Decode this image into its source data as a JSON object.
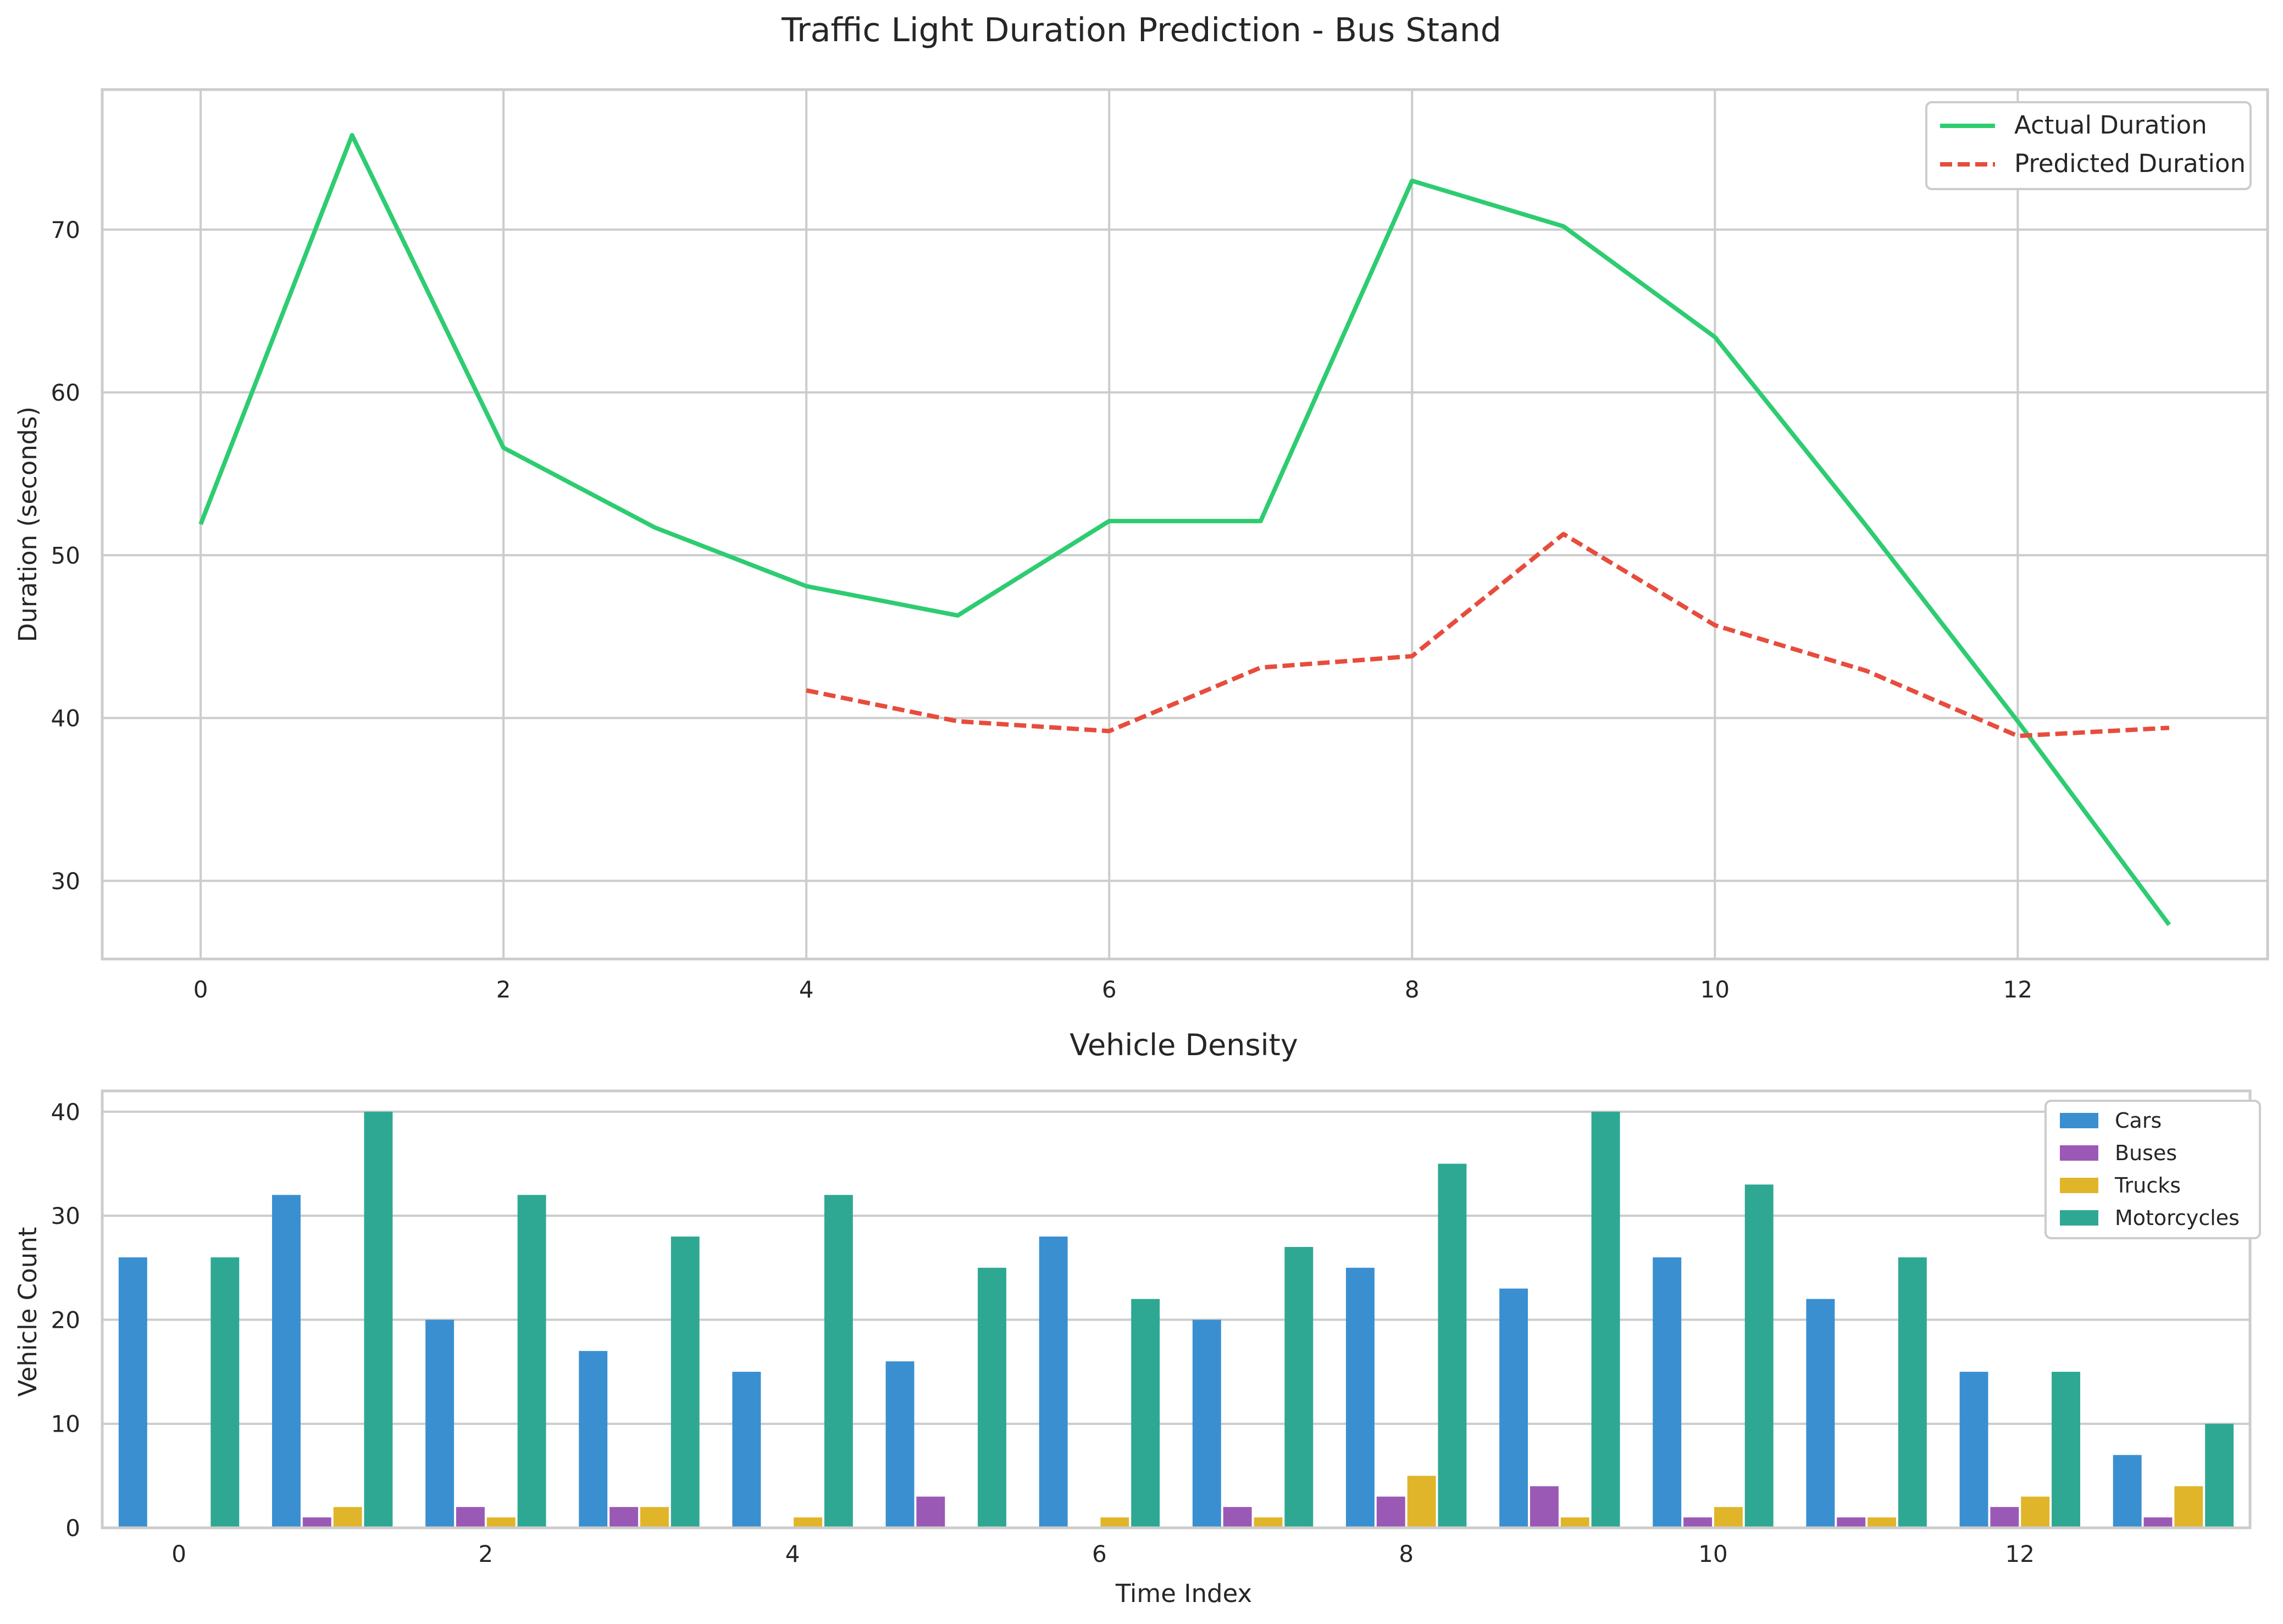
{
  "chart_data": [
    {
      "type": "line",
      "title": "Traffic Light Duration Prediction - Bus Stand",
      "xlabel": "",
      "ylabel": "Duration (seconds)",
      "xlim": [
        -0.65,
        13.65
      ],
      "ylim": [
        25.2,
        78.6
      ],
      "xticks": [
        0,
        2,
        4,
        6,
        8,
        10,
        12
      ],
      "yticks": [
        30,
        40,
        50,
        60,
        70
      ],
      "grid": true,
      "legend": "top-right",
      "series": [
        {
          "name": "Actual Duration",
          "color": "#2ecc71",
          "style": "solid",
          "x": [
            0,
            1,
            2,
            3,
            4,
            5,
            6,
            7,
            8,
            9,
            10,
            11,
            12,
            13
          ],
          "y": [
            51.9,
            75.8,
            56.6,
            51.7,
            48.1,
            46.3,
            52.1,
            52.1,
            73.0,
            70.2,
            63.4,
            51.8,
            39.8,
            27.3
          ]
        },
        {
          "name": "Predicted Duration",
          "color": "#e74c3c",
          "style": "dashed",
          "x": [
            4,
            5,
            6,
            7,
            8,
            9,
            10,
            11,
            12,
            13
          ],
          "y": [
            41.7,
            39.8,
            39.2,
            43.1,
            43.8,
            51.3,
            45.7,
            42.9,
            38.9,
            39.4
          ]
        }
      ]
    },
    {
      "type": "bar",
      "title": "Vehicle Density",
      "xlabel": "Time Index",
      "ylabel": "Vehicle Count",
      "xlim": [
        -0.5,
        13.5
      ],
      "ylim": [
        0,
        42
      ],
      "xticks": [
        0,
        2,
        4,
        6,
        8,
        10,
        12
      ],
      "yticks": [
        0,
        10,
        20,
        30,
        40
      ],
      "grid": true,
      "legend": "top-right",
      "categories": [
        0,
        1,
        2,
        3,
        4,
        5,
        6,
        7,
        8,
        9,
        10,
        11,
        12,
        13
      ],
      "series": [
        {
          "name": "Cars",
          "color": "#3a8fd0",
          "values": [
            26,
            32,
            20,
            17,
            15,
            16,
            28,
            20,
            25,
            23,
            26,
            22,
            15,
            7
          ]
        },
        {
          "name": "Buses",
          "color": "#9b59b6",
          "values": [
            0,
            1,
            2,
            2,
            0,
            3,
            0,
            2,
            3,
            4,
            1,
            1,
            2,
            1
          ]
        },
        {
          "name": "Trucks",
          "color": "#e1b52a",
          "values": [
            0,
            2,
            1,
            2,
            1,
            0,
            1,
            1,
            5,
            1,
            2,
            1,
            3,
            4
          ]
        },
        {
          "name": "Motorcycles",
          "color": "#2ea893",
          "values": [
            26,
            40,
            32,
            28,
            32,
            25,
            22,
            27,
            35,
            40,
            33,
            26,
            15,
            10
          ]
        }
      ]
    }
  ]
}
